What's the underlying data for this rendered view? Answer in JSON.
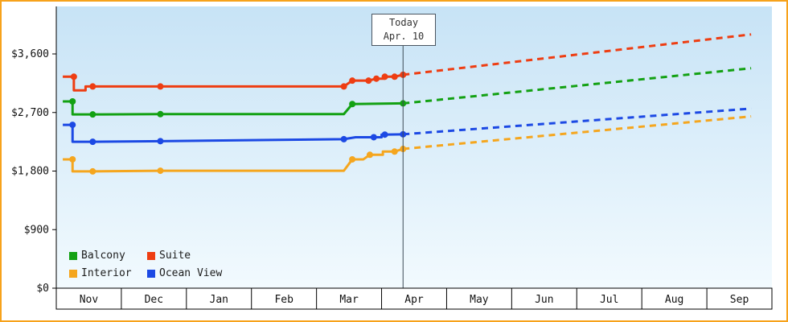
{
  "window": {
    "border_color": "#F7A21B",
    "bg_top": "#C7E3F6",
    "bg_bottom": "#F2FAFE"
  },
  "chart_data": {
    "type": "line",
    "y_axis": {
      "tick_labels": [
        "$0",
        "$900",
        "$1,800",
        "$2,700",
        "$3,600"
      ],
      "tick_values": [
        0,
        900,
        1800,
        2700,
        3600
      ],
      "ylim": [
        0,
        4330
      ]
    },
    "x_axis": {
      "month_labels": [
        "Nov",
        "Dec",
        "Jan",
        "Feb",
        "Mar",
        "Apr",
        "May",
        "Jun",
        "Jul",
        "Aug",
        "Sep"
      ]
    },
    "today": {
      "line1": "Today",
      "line2": "Apr. 10",
      "x_months": 5.33
    },
    "forecast_end_x_months": 10.68,
    "series": [
      {
        "name": "Balcony",
        "color": "#13A113",
        "history": [
          [
            0.1,
            2870
          ],
          [
            0.25,
            2870
          ],
          [
            0.25,
            2670
          ],
          [
            0.56,
            2670
          ],
          [
            1.6,
            2675
          ],
          [
            4.42,
            2675
          ],
          [
            4.55,
            2830
          ],
          [
            5.33,
            2840
          ]
        ],
        "dots": [
          [
            0.25,
            2870
          ],
          [
            0.56,
            2670
          ],
          [
            1.6,
            2675
          ],
          [
            4.55,
            2830
          ],
          [
            5.33,
            2840
          ]
        ],
        "forecast_end_value": 3380
      },
      {
        "name": "Suite",
        "color": "#EE3D12",
        "history": [
          [
            0.1,
            3250
          ],
          [
            0.27,
            3250
          ],
          [
            0.27,
            3040
          ],
          [
            0.45,
            3040
          ],
          [
            0.45,
            3100
          ],
          [
            0.56,
            3100
          ],
          [
            1.6,
            3100
          ],
          [
            4.42,
            3100
          ],
          [
            4.55,
            3190
          ],
          [
            4.8,
            3190
          ],
          [
            4.92,
            3220
          ],
          [
            5.05,
            3220
          ],
          [
            5.05,
            3250
          ],
          [
            5.2,
            3250
          ],
          [
            5.33,
            3280
          ]
        ],
        "dots": [
          [
            0.27,
            3250
          ],
          [
            0.56,
            3100
          ],
          [
            1.6,
            3100
          ],
          [
            4.42,
            3100
          ],
          [
            4.55,
            3190
          ],
          [
            4.8,
            3190
          ],
          [
            4.92,
            3220
          ],
          [
            5.05,
            3250
          ],
          [
            5.2,
            3250
          ],
          [
            5.33,
            3280
          ]
        ],
        "forecast_end_value": 3900
      },
      {
        "name": "Interior",
        "color": "#F5A61E",
        "history": [
          [
            0.1,
            1980
          ],
          [
            0.25,
            1980
          ],
          [
            0.25,
            1795
          ],
          [
            0.56,
            1795
          ],
          [
            1.6,
            1805
          ],
          [
            4.42,
            1805
          ],
          [
            4.55,
            1980
          ],
          [
            4.72,
            1980
          ],
          [
            4.82,
            2050
          ],
          [
            5.02,
            2050
          ],
          [
            5.02,
            2100
          ],
          [
            5.2,
            2100
          ],
          [
            5.33,
            2140
          ]
        ],
        "dots": [
          [
            0.25,
            1980
          ],
          [
            0.56,
            1795
          ],
          [
            1.6,
            1805
          ],
          [
            4.55,
            1980
          ],
          [
            4.82,
            2050
          ],
          [
            5.2,
            2100
          ],
          [
            5.33,
            2140
          ]
        ],
        "forecast_end_value": 2640
      },
      {
        "name": "Ocean View",
        "color": "#1C49E4",
        "history": [
          [
            0.1,
            2510
          ],
          [
            0.25,
            2510
          ],
          [
            0.25,
            2250
          ],
          [
            0.56,
            2250
          ],
          [
            1.6,
            2260
          ],
          [
            4.42,
            2290
          ],
          [
            4.6,
            2320
          ],
          [
            5.0,
            2320
          ],
          [
            5.0,
            2360
          ],
          [
            5.33,
            2365
          ]
        ],
        "dots": [
          [
            0.25,
            2510
          ],
          [
            0.56,
            2250
          ],
          [
            1.6,
            2260
          ],
          [
            4.42,
            2290
          ],
          [
            4.88,
            2320
          ],
          [
            5.05,
            2360
          ],
          [
            5.33,
            2365
          ]
        ],
        "forecast_end_value": 2760
      }
    ],
    "legend_order": [
      "Balcony",
      "Suite",
      "Interior",
      "Ocean View"
    ]
  }
}
